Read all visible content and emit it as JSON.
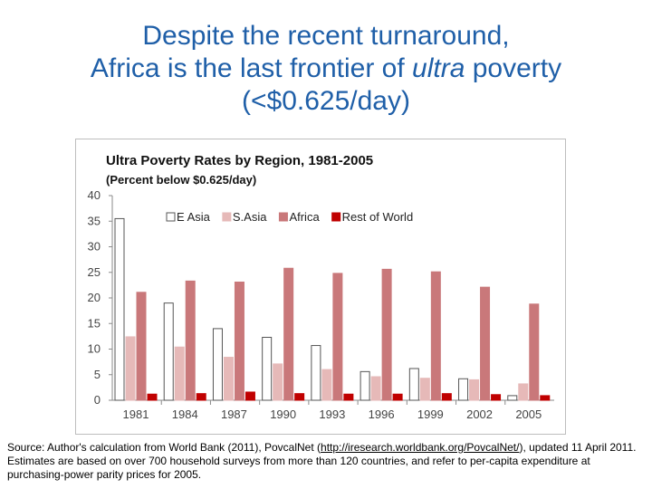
{
  "slide": {
    "title_line1": "Despite the recent turnaround,",
    "title_line2_pre": "Africa is the last frontier of ",
    "title_line2_em": "ultra",
    "title_line2_post": " poverty",
    "title_line3": "(<$0.625/day)"
  },
  "source": {
    "prefix": "Source:  Author's calculation from World Bank (2011), PovcalNet  (",
    "link": "http://iresearch.worldbank.org/PovcalNet/",
    "suffix": "), updated 11 April 2011.  Estimates are based on over 700 household surveys from more than 120 countries, and refer to per-capita expenditure at purchasing-power parity prices for 2005."
  },
  "chart_data": {
    "type": "bar",
    "title": "Ultra Poverty Rates by Region, 1981-2005",
    "subtitle": "(Percent below $0.625/day)",
    "xlabel": "",
    "ylabel": "",
    "ylim": [
      0,
      40
    ],
    "yticks": [
      0,
      5,
      10,
      15,
      20,
      25,
      30,
      35,
      40
    ],
    "grid": false,
    "legend": "top-center",
    "categories": [
      "1981",
      "1984",
      "1987",
      "1990",
      "1993",
      "1996",
      "1999",
      "2002",
      "2005"
    ],
    "series": [
      {
        "name": "E Asia",
        "color": "#ffffff",
        "stroke": "#555555",
        "values": [
          35.5,
          19.0,
          14.0,
          12.3,
          10.7,
          5.6,
          6.2,
          4.2,
          0.9
        ]
      },
      {
        "name": "S.Asia",
        "color": "#e6b9b8",
        "stroke": "#e6b9b8",
        "values": [
          12.4,
          10.4,
          8.4,
          7.1,
          6.0,
          4.6,
          4.3,
          4.0,
          3.2
        ]
      },
      {
        "name": "Africa",
        "color": "#c9787a",
        "stroke": "#c9787a",
        "values": [
          21.1,
          23.3,
          23.1,
          25.8,
          24.8,
          25.6,
          25.1,
          22.1,
          18.8
        ]
      },
      {
        "name": "Rest of World",
        "color": "#c00000",
        "stroke": "#c00000",
        "values": [
          1.2,
          1.3,
          1.6,
          1.3,
          1.2,
          1.2,
          1.3,
          1.1,
          0.9
        ]
      }
    ]
  }
}
